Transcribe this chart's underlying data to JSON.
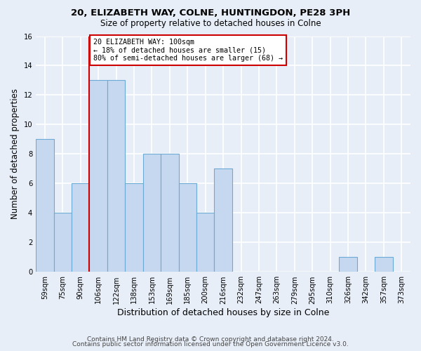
{
  "title1": "20, ELIZABETH WAY, COLNE, HUNTINGDON, PE28 3PH",
  "title2": "Size of property relative to detached houses in Colne",
  "xlabel": "Distribution of detached houses by size in Colne",
  "ylabel": "Number of detached properties",
  "footer1": "Contains HM Land Registry data © Crown copyright and database right 2024.",
  "footer2": "Contains public sector information licensed under the Open Government Licence v3.0.",
  "bin_labels": [
    "59sqm",
    "75sqm",
    "90sqm",
    "106sqm",
    "122sqm",
    "138sqm",
    "153sqm",
    "169sqm",
    "185sqm",
    "200sqm",
    "216sqm",
    "232sqm",
    "247sqm",
    "263sqm",
    "279sqm",
    "295sqm",
    "310sqm",
    "326sqm",
    "342sqm",
    "357sqm",
    "373sqm"
  ],
  "values": [
    9,
    4,
    6,
    13,
    13,
    6,
    8,
    8,
    6,
    4,
    7,
    0,
    0,
    0,
    0,
    0,
    0,
    1,
    0,
    1,
    0
  ],
  "bar_color": "#c5d8f0",
  "bar_edge_color": "#6aaad4",
  "annotation_box_color": "#ffffff",
  "annotation_box_edge": "#cc0000",
  "vertical_line_color": "#cc0000",
  "annotation_line1": "20 ELIZABETH WAY: 100sqm",
  "annotation_line2": "← 18% of detached houses are smaller (15)",
  "annotation_line3": "80% of semi-detached houses are larger (68) →",
  "property_bin_index": 3,
  "ylim": [
    0,
    16
  ],
  "yticks": [
    0,
    2,
    4,
    6,
    8,
    10,
    12,
    14,
    16
  ],
  "background_color": "#e8eef8",
  "grid_color": "#ffffff",
  "plot_bg_color": "#e8eef8"
}
